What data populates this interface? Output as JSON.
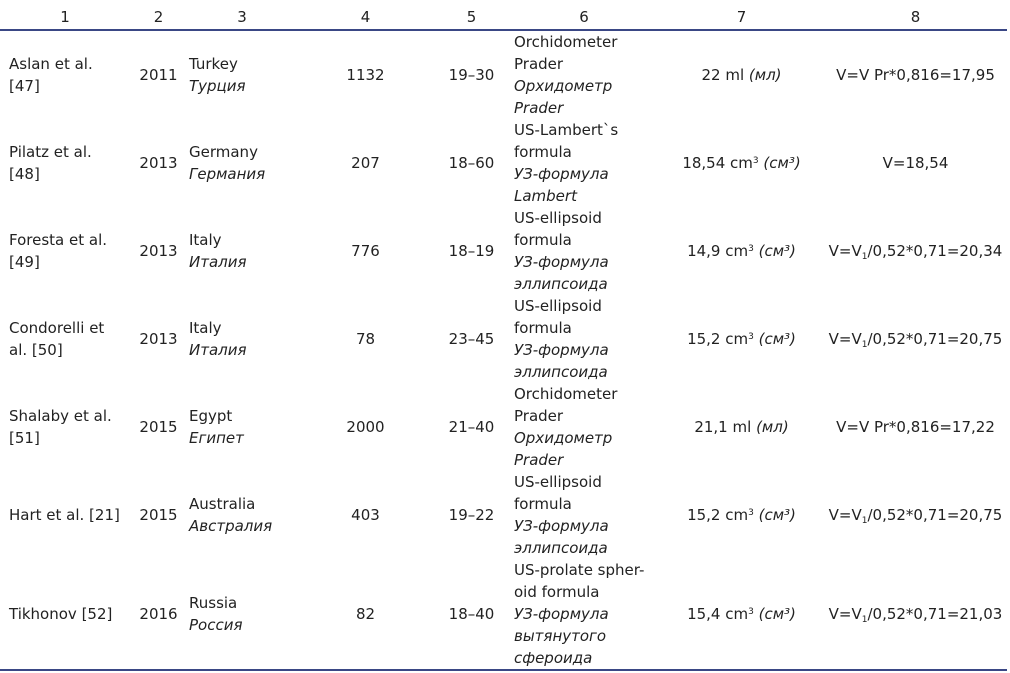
{
  "headers": [
    "1",
    "2",
    "3",
    "4",
    "5",
    "6",
    "7",
    "8"
  ],
  "rows": [
    {
      "author": [
        "Aslan et al.",
        "[47]"
      ],
      "year": "2011",
      "country_en": "Turkey",
      "country_ru": "Турция",
      "n": "1132",
      "age": "19–30",
      "method_en": [
        "Orchidometer",
        "Prader"
      ],
      "method_ru": [
        "Орхидометр",
        "Prader"
      ],
      "volume_value": "22 ml",
      "volume_sup": "",
      "volume_unit": "(мл)",
      "formula_pre": "V=V Pr*0,816=17,95",
      "formula_sub": "",
      "formula_post": ""
    },
    {
      "author": [
        "Pilatz et al.",
        "[48]"
      ],
      "year": "2013",
      "country_en": "Germany",
      "country_ru": "Германия",
      "n": "207",
      "age": "18–60",
      "method_en": [
        "US-Lambert`s",
        "formula"
      ],
      "method_ru": [
        "УЗ-формула",
        "Lambert"
      ],
      "volume_value": "18,54 cm",
      "volume_sup": "3",
      "volume_unit": "(см³)",
      "formula_pre": "V=18,54",
      "formula_sub": "",
      "formula_post": ""
    },
    {
      "author": [
        "Foresta et al.",
        "[49]"
      ],
      "year": "2013",
      "country_en": "Italy",
      "country_ru": "Италия",
      "n": "776",
      "age": "18–19",
      "method_en": [
        "US-ellipsoid",
        "formula"
      ],
      "method_ru": [
        "УЗ-формула",
        "эллипсоида"
      ],
      "volume_value": "14,9 cm",
      "volume_sup": "3",
      "volume_unit": "(см³)",
      "formula_pre": "V=V",
      "formula_sub": "1",
      "formula_post": "/0,52*0,71=20,34"
    },
    {
      "author": [
        "Condorelli et",
        "al. [50]"
      ],
      "year": "2013",
      "country_en": "Italy",
      "country_ru": "Италия",
      "n": "78",
      "age": "23–45",
      "method_en": [
        "US-ellipsoid",
        "formula"
      ],
      "method_ru": [
        "УЗ-формула",
        "эллипсоида"
      ],
      "volume_value": "15,2 cm",
      "volume_sup": "3",
      "volume_unit": "(см³)",
      "formula_pre": "V=V",
      "formula_sub": "1",
      "formula_post": "/0,52*0,71=20,75"
    },
    {
      "author": [
        "Shalaby et al.",
        "[51]"
      ],
      "year": "2015",
      "country_en": "Egypt",
      "country_ru": "Египет",
      "n": "2000",
      "age": "21–40",
      "method_en": [
        "Orchidometer",
        "Prader"
      ],
      "method_ru": [
        "Орхидометр",
        "Prader"
      ],
      "volume_value": "21,1 ml",
      "volume_sup": "",
      "volume_unit": "(мл)",
      "formula_pre": "V=V Pr*0,816=17,22",
      "formula_sub": "",
      "formula_post": ""
    },
    {
      "author": [
        "Hart et al. [21]"
      ],
      "year": "2015",
      "country_en": "Australia",
      "country_ru": "Австралия",
      "n": "403",
      "age": "19–22",
      "method_en": [
        "US-ellipsoid",
        "formula"
      ],
      "method_ru": [
        "УЗ-формула",
        "эллипсоида"
      ],
      "volume_value": "15,2 cm",
      "volume_sup": "3",
      "volume_unit": "(см³)",
      "formula_pre": "V=V",
      "formula_sub": "1",
      "formula_post": "/0,52*0,71=20,75"
    },
    {
      "author": [
        "Tikhonov [52]"
      ],
      "year": "2016",
      "country_en": "Russia",
      "country_ru": "Россия",
      "n": "82",
      "age": "18–40",
      "method_en": [
        "US-prolate spher-",
        "oid formula"
      ],
      "method_ru": [
        "УЗ-формула",
        "вытянутого",
        "сфероида"
      ],
      "volume_value": "15,4 cm",
      "volume_sup": "3",
      "volume_unit": "(см³)",
      "formula_pre": "V=V",
      "formula_sub": "1",
      "formula_post": "/0,52*0,71=21,03"
    }
  ]
}
